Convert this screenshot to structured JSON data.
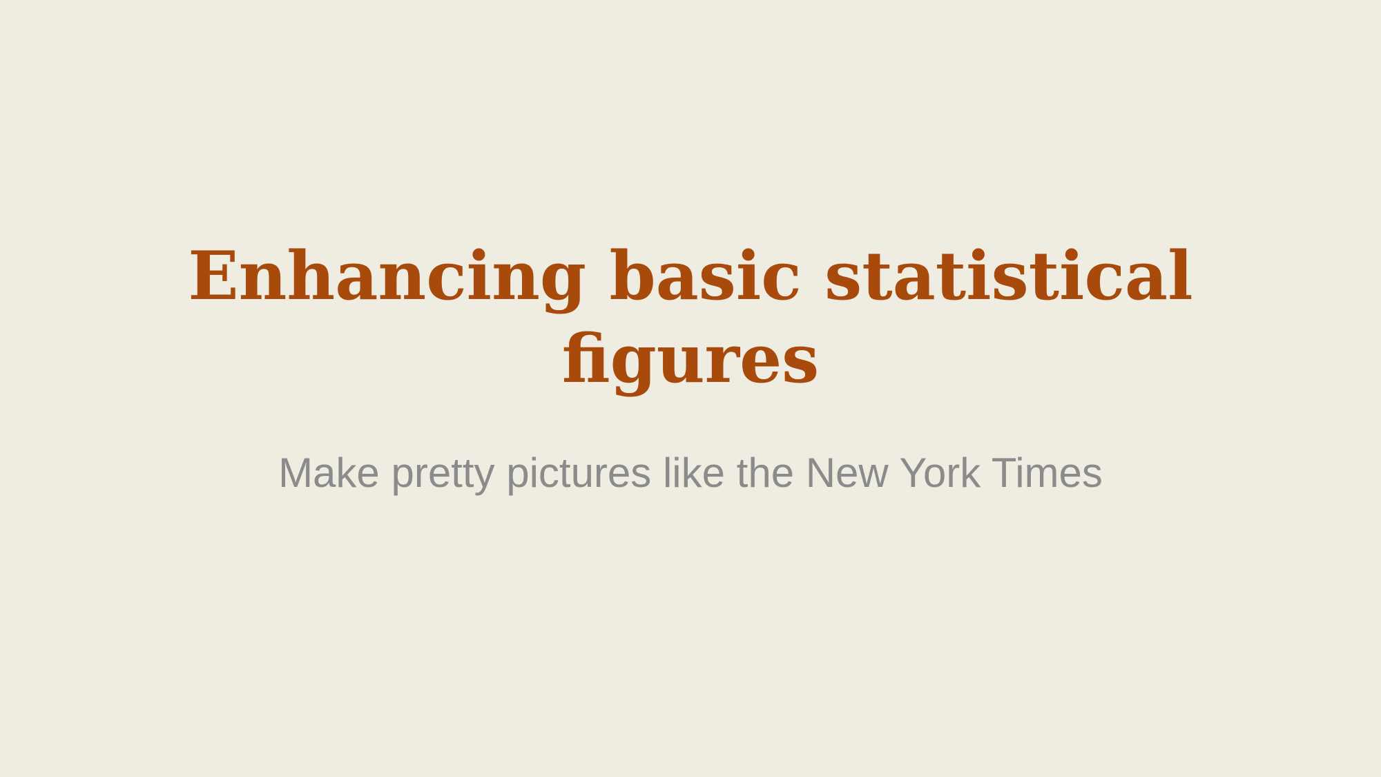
{
  "slide": {
    "title": "Enhancing basic statistical figures",
    "subtitle": "Make pretty pictures like the New York Times"
  },
  "colors": {
    "background": "#EFEDE2",
    "title": "#A74A0C",
    "subtitle": "#8B8B8B"
  }
}
